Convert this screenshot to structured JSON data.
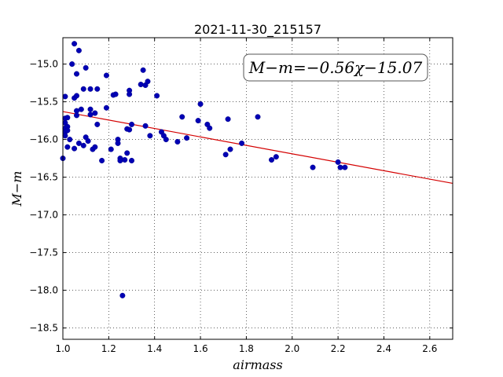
{
  "chart_data": {
    "type": "scatter",
    "title": "2021-11-30_215157",
    "xlabel": "airmass",
    "ylabel": "M−m",
    "annotation": "M−m=−0.56χ−15.07",
    "xlim": [
      1.0,
      2.7
    ],
    "ylim": [
      -18.65,
      -14.65
    ],
    "x_ticks": [
      1.0,
      1.2,
      1.4,
      1.6,
      1.8,
      2.0,
      2.2,
      2.4,
      2.6
    ],
    "x_tick_labels": [
      "1.0",
      "1.2",
      "1.4",
      "1.6",
      "1.8",
      "2.0",
      "2.2",
      "2.4",
      "2.6"
    ],
    "y_ticks": [
      -15.0,
      -15.5,
      -16.0,
      -16.5,
      -17.0,
      -17.5,
      -18.0,
      -18.5
    ],
    "y_tick_labels": [
      "−15.0",
      "−15.5",
      "−16.0",
      "−16.5",
      "−17.0",
      "−17.5",
      "−18.0",
      "−18.5"
    ],
    "grid": true,
    "fit_line": {
      "slope": -0.56,
      "intercept": -15.07,
      "color": "#d40000"
    },
    "point_color": "#0000b4",
    "points": [
      [
        1.0,
        -16.25
      ],
      [
        1.01,
        -15.43
      ],
      [
        1.01,
        -15.72
      ],
      [
        1.01,
        -15.78
      ],
      [
        1.01,
        -15.85
      ],
      [
        1.01,
        -15.9
      ],
      [
        1.01,
        -15.95
      ],
      [
        1.02,
        -15.83
      ],
      [
        1.02,
        -15.88
      ],
      [
        1.02,
        -16.1
      ],
      [
        1.02,
        -15.71
      ],
      [
        1.03,
        -16.0
      ],
      [
        1.04,
        -15.0
      ],
      [
        1.05,
        -14.73
      ],
      [
        1.05,
        -15.45
      ],
      [
        1.05,
        -16.12
      ],
      [
        1.06,
        -15.13
      ],
      [
        1.06,
        -15.42
      ],
      [
        1.06,
        -15.62
      ],
      [
        1.06,
        -15.68
      ],
      [
        1.07,
        -14.82
      ],
      [
        1.07,
        -16.05
      ],
      [
        1.08,
        -15.6
      ],
      [
        1.09,
        -15.33
      ],
      [
        1.09,
        -16.08
      ],
      [
        1.1,
        -15.97
      ],
      [
        1.1,
        -15.05
      ],
      [
        1.11,
        -16.02
      ],
      [
        1.12,
        -15.33
      ],
      [
        1.12,
        -15.6
      ],
      [
        1.12,
        -15.67
      ],
      [
        1.13,
        -16.13
      ],
      [
        1.14,
        -16.1
      ],
      [
        1.14,
        -15.65
      ],
      [
        1.15,
        -15.33
      ],
      [
        1.15,
        -15.8
      ],
      [
        1.17,
        -16.28
      ],
      [
        1.19,
        -15.15
      ],
      [
        1.19,
        -15.58
      ],
      [
        1.21,
        -16.13
      ],
      [
        1.22,
        -15.41
      ],
      [
        1.23,
        -15.4
      ],
      [
        1.24,
        -16.0
      ],
      [
        1.24,
        -16.05
      ],
      [
        1.25,
        -16.25
      ],
      [
        1.25,
        -16.28
      ],
      [
        1.26,
        -18.07
      ],
      [
        1.27,
        -16.27
      ],
      [
        1.28,
        -15.86
      ],
      [
        1.28,
        -16.18
      ],
      [
        1.29,
        -15.35
      ],
      [
        1.29,
        -15.4
      ],
      [
        1.29,
        -15.87
      ],
      [
        1.3,
        -15.8
      ],
      [
        1.3,
        -16.28
      ],
      [
        1.34,
        -15.27
      ],
      [
        1.35,
        -15.08
      ],
      [
        1.36,
        -15.82
      ],
      [
        1.36,
        -15.28
      ],
      [
        1.37,
        -15.23
      ],
      [
        1.38,
        -15.95
      ],
      [
        1.41,
        -15.42
      ],
      [
        1.43,
        -15.9
      ],
      [
        1.44,
        -15.95
      ],
      [
        1.45,
        -16.0
      ],
      [
        1.5,
        -16.03
      ],
      [
        1.52,
        -15.7
      ],
      [
        1.54,
        -15.98
      ],
      [
        1.59,
        -15.75
      ],
      [
        1.6,
        -15.53
      ],
      [
        1.63,
        -15.8
      ],
      [
        1.64,
        -15.85
      ],
      [
        1.71,
        -16.2
      ],
      [
        1.72,
        -15.73
      ],
      [
        1.73,
        -16.13
      ],
      [
        1.78,
        -16.05
      ],
      [
        1.85,
        -15.7
      ],
      [
        1.91,
        -16.27
      ],
      [
        1.93,
        -16.23
      ],
      [
        2.09,
        -16.37
      ],
      [
        2.2,
        -16.3
      ],
      [
        2.21,
        -16.37
      ],
      [
        2.23,
        -16.37
      ]
    ]
  }
}
